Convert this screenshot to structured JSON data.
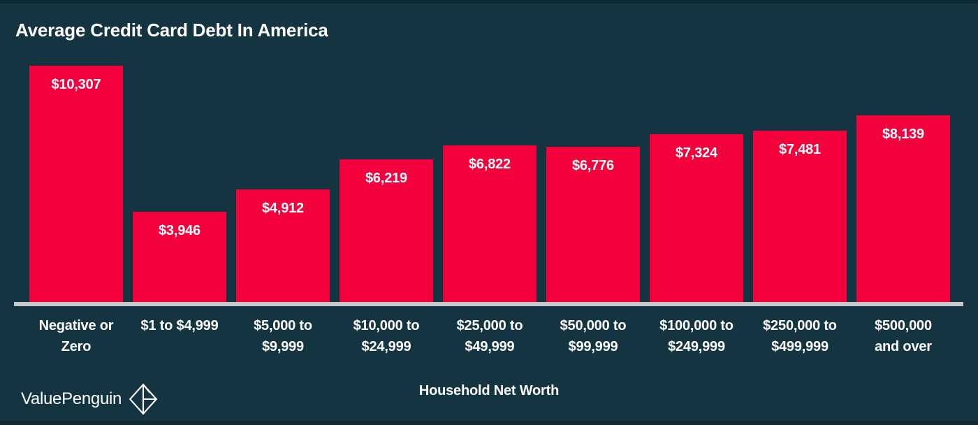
{
  "page": {
    "background_color": "#143441",
    "edge_strip_color": "#0f2a33"
  },
  "title": "Average Credit Card Debt In America",
  "footer": {
    "brand": "ValuePenguin",
    "logo_icon": "valuepenguin-origami-penguin-icon"
  },
  "chart_data": {
    "type": "bar",
    "title": "Average Credit Card Debt In America",
    "xlabel": "Household Net Worth",
    "ylabel": "",
    "ylim": [
      0,
      10307
    ],
    "grid": false,
    "legend": null,
    "bar_color": "#f2013d",
    "baseline_color": "#c6c9cb",
    "label_color": "#ffffff",
    "categories": [
      "Negative or Zero",
      "$1 to $4,999",
      "$5,000 to $9,999",
      "$10,000 to $24,999",
      "$25,000 to $49,999",
      "$50,000 to $99,999",
      "$100,000 to $249,999",
      "$250,000 to $499,999",
      "$500,000 and over"
    ],
    "category_lines": [
      [
        "Negative or",
        "Zero"
      ],
      [
        "$1 to $4,999"
      ],
      [
        "$5,000 to",
        "$9,999"
      ],
      [
        "$10,000 to",
        "$24,999"
      ],
      [
        "$25,000 to",
        "$49,999"
      ],
      [
        "$50,000 to",
        "$99,999"
      ],
      [
        "$100,000 to",
        "$249,999"
      ],
      [
        "$250,000 to",
        "$499,999"
      ],
      [
        "$500,000",
        "and over"
      ]
    ],
    "values": [
      10307,
      3946,
      4912,
      6219,
      6822,
      6776,
      7324,
      7481,
      8139
    ],
    "value_labels": [
      "$10,307",
      "$3,946",
      "$4,912",
      "$6,219",
      "$6,822",
      "$6,776",
      "$7,324",
      "$7,481",
      "$8,139"
    ]
  }
}
